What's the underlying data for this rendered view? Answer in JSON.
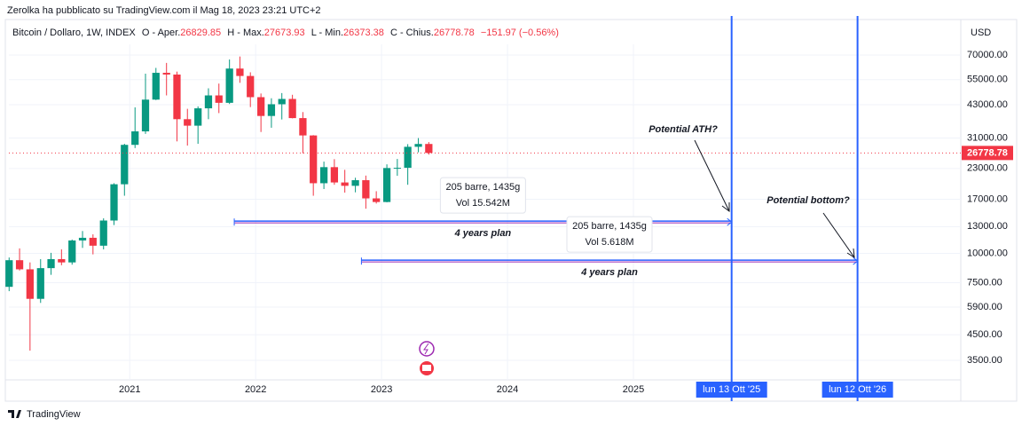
{
  "header": {
    "published": "Zerolka ha pubblicato su TradingView.com il Mag 18, 2023 23:21 UTC+2"
  },
  "chart_data": {
    "type": "candlestick",
    "title": "Bitcoin / Dollaro, 1W, INDEX",
    "ohlc_legend": {
      "open_label": "O - Aper.",
      "open": 26829.85,
      "high_label": "H - Max.",
      "high": 27673.93,
      "low_label": "L - Min.",
      "low": 26373.38,
      "close_label": "C - Chius.",
      "close": 26778.78,
      "change": "−151.97 (−0.56%)"
    },
    "currency": "USD",
    "x": [
      2020.042,
      2020.125,
      2020.208,
      2020.292,
      2020.375,
      2020.458,
      2020.542,
      2020.625,
      2020.708,
      2020.792,
      2020.875,
      2020.958,
      2021.042,
      2021.125,
      2021.208,
      2021.292,
      2021.375,
      2021.458,
      2021.542,
      2021.625,
      2021.708,
      2021.792,
      2021.875,
      2021.958,
      2022.042,
      2022.125,
      2022.208,
      2022.292,
      2022.375,
      2022.458,
      2022.542,
      2022.625,
      2022.708,
      2022.792,
      2022.875,
      2022.958,
      2023.042,
      2023.125,
      2023.208,
      2023.292,
      2023.375
    ],
    "open": [
      7200,
      9350,
      8550,
      6400,
      8650,
      9450,
      9150,
      11350,
      11650,
      10780,
      13800,
      19700,
      29000,
      33100,
      45200,
      58800,
      57800,
      37300,
      35000,
      41500,
      47100,
      43800,
      61300,
      57000,
      46300,
      38500,
      43200,
      45500,
      37700,
      31800,
      19900,
      23300,
      20050,
      19400,
      20500,
      17150,
      16550,
      23100,
      23150,
      28450,
      29250
    ],
    "high": [
      9600,
      10500,
      9150,
      9450,
      10050,
      10400,
      11450,
      12450,
      12050,
      14100,
      19900,
      29300,
      41900,
      58300,
      61700,
      64800,
      59500,
      41300,
      42300,
      50500,
      52900,
      67000,
      69000,
      59100,
      48000,
      45800,
      48200,
      47400,
      40000,
      31900,
      24600,
      25200,
      22700,
      21000,
      21450,
      18400,
      23950,
      25250,
      29200,
      31000,
      29800
    ],
    "low": [
      6900,
      8450,
      3850,
      6150,
      8100,
      8900,
      8950,
      10550,
      9900,
      10400,
      13200,
      17600,
      28100,
      32300,
      45000,
      47100,
      30000,
      28800,
      29300,
      37300,
      39600,
      43300,
      53300,
      42000,
      32900,
      34300,
      37200,
      37600,
      26700,
      17600,
      18800,
      19600,
      18150,
      18200,
      15500,
      16300,
      16500,
      21400,
      19600,
      26950,
      26350
    ],
    "close": [
      9350,
      8550,
      6400,
      8650,
      9450,
      9150,
      11350,
      11650,
      10780,
      13800,
      19700,
      29000,
      33100,
      45200,
      58800,
      57800,
      37300,
      35000,
      41500,
      47100,
      43800,
      61300,
      57000,
      46300,
      38500,
      43200,
      45500,
      37700,
      31800,
      19900,
      23300,
      20050,
      19400,
      20500,
      17150,
      16550,
      23100,
      23150,
      28450,
      29250,
      26780
    ],
    "up_color": "#089981",
    "down_color": "#f23645",
    "log_scale": true,
    "grid": true,
    "xlim": [
      2020.04,
      2027.6
    ],
    "xticks": [
      2021,
      2022,
      2023,
      2024,
      2025
    ],
    "ylim": [
      2345,
      102700
    ],
    "yticks": [
      {
        "value": 70000,
        "label": "70000.00"
      },
      {
        "value": 55000,
        "label": "55000.00"
      },
      {
        "value": 43000,
        "label": "43000.00"
      },
      {
        "value": 31000,
        "label": "31000.00"
      },
      {
        "value": 23000,
        "label": "23000.00"
      },
      {
        "value": 17000,
        "label": "17000.00"
      },
      {
        "value": 13000,
        "label": "13000.00"
      },
      {
        "value": 10000,
        "label": "10000.00"
      },
      {
        "value": 7500,
        "label": "7500.00"
      },
      {
        "value": 5900,
        "label": "5900.00"
      },
      {
        "value": 4500,
        "label": "4500.00"
      },
      {
        "value": 3500,
        "label": "3500.00"
      }
    ],
    "last_price": 26778.78,
    "vertical_markers": [
      {
        "x": 2025.78,
        "label": "lun 13 Ott '25"
      },
      {
        "x": 2026.78,
        "label": "lun 12 Ott '26"
      }
    ],
    "ranges": [
      {
        "x_start": 2021.83,
        "x_end": 2025.78,
        "price": 13600,
        "bars_label": "205 barre, 1435g",
        "volume_label": "Vol 15.542M",
        "caption": "4 years plan"
      },
      {
        "x_start": 2022.84,
        "x_end": 2026.78,
        "price": 9270,
        "bars_label": "205 barre, 1435g",
        "volume_label": "Vol 5.618M",
        "caption": "4 years plan"
      }
    ],
    "annotations": [
      {
        "text": "Potential ATH?"
      },
      {
        "text": "Potential bottom?"
      }
    ]
  },
  "footer": {
    "brand": "TradingView"
  }
}
